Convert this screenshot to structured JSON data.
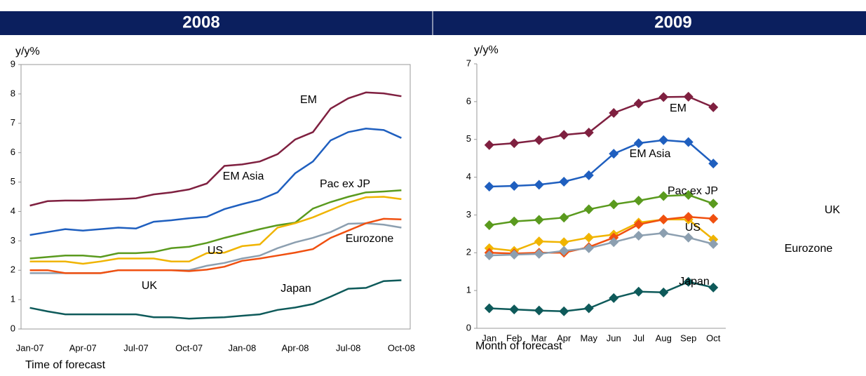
{
  "chart_data": [
    {
      "type": "line",
      "title": "2008",
      "ylabel": "y/y%",
      "xlabel": "Time of forecast",
      "categories": [
        "Jan-07",
        null,
        null,
        "Apr-07",
        null,
        null,
        "Jul-07",
        null,
        null,
        "Oct-07",
        null,
        null,
        "Jan-08",
        null,
        null,
        "Apr-08",
        null,
        null,
        "Jul-08",
        null,
        null,
        "Oct-08"
      ],
      "ylim": [
        0,
        9
      ],
      "yticks": [
        0,
        1,
        2,
        3,
        4,
        5,
        6,
        7,
        8,
        9
      ],
      "series": [
        {
          "name": "EM",
          "color": "#7f2040",
          "values": [
            4.2,
            4.35,
            4.37,
            4.37,
            4.4,
            4.42,
            4.45,
            4.58,
            4.65,
            4.75,
            4.95,
            5.55,
            5.6,
            5.7,
            5.95,
            6.45,
            6.7,
            7.5,
            7.85,
            8.05,
            8.02,
            7.92
          ]
        },
        {
          "name": "EM Asia",
          "color": "#1f5fbf",
          "values": [
            3.2,
            3.3,
            3.4,
            3.35,
            3.4,
            3.45,
            3.42,
            3.65,
            3.7,
            3.77,
            3.82,
            4.08,
            4.25,
            4.4,
            4.65,
            5.3,
            5.7,
            6.42,
            6.7,
            6.82,
            6.77,
            6.5
          ]
        },
        {
          "name": "Pac ex JP",
          "color": "#5a9a1e",
          "values": [
            2.4,
            2.45,
            2.5,
            2.5,
            2.45,
            2.58,
            2.58,
            2.62,
            2.75,
            2.8,
            2.93,
            3.1,
            3.25,
            3.4,
            3.53,
            3.62,
            4.1,
            4.32,
            4.5,
            4.65,
            4.68,
            4.72
          ]
        },
        {
          "name": "US",
          "color": "#f0b400",
          "values": [
            2.3,
            2.3,
            2.3,
            2.22,
            2.3,
            2.4,
            2.4,
            2.4,
            2.3,
            2.3,
            2.58,
            2.6,
            2.82,
            2.88,
            3.45,
            3.6,
            3.8,
            4.05,
            4.3,
            4.48,
            4.5,
            4.42
          ]
        },
        {
          "name": "Eurozone",
          "color": "#8c9fb0",
          "values": [
            1.9,
            1.9,
            1.9,
            1.9,
            1.9,
            2.0,
            2.0,
            2.0,
            2.0,
            2.0,
            2.15,
            2.25,
            2.4,
            2.5,
            2.75,
            2.95,
            3.1,
            3.3,
            3.58,
            3.6,
            3.55,
            3.45
          ]
        },
        {
          "name": "UK",
          "color": "#f05010",
          "values": [
            2.0,
            2.0,
            1.9,
            1.9,
            1.9,
            2.0,
            2.0,
            2.0,
            2.0,
            1.97,
            2.02,
            2.12,
            2.32,
            2.4,
            2.5,
            2.6,
            2.72,
            3.1,
            3.35,
            3.6,
            3.75,
            3.73
          ]
        },
        {
          "name": "Japan",
          "color": "#0e5a5a",
          "values": [
            0.72,
            0.6,
            0.5,
            0.5,
            0.5,
            0.5,
            0.5,
            0.4,
            0.4,
            0.35,
            0.38,
            0.4,
            0.45,
            0.5,
            0.65,
            0.73,
            0.85,
            1.1,
            1.37,
            1.4,
            1.63,
            1.66
          ]
        }
      ]
    },
    {
      "type": "line",
      "title": "2009",
      "ylabel": "y/y%",
      "xlabel": "Month of forecast",
      "marker": "diamond",
      "categories": [
        "Jan",
        "Feb",
        "Mar",
        "Apr",
        "May",
        "Jun",
        "Jul",
        "Aug",
        "Sep",
        "Oct"
      ],
      "ylim": [
        0,
        7
      ],
      "yticks": [
        0,
        1,
        2,
        3,
        4,
        5,
        6,
        7
      ],
      "series": [
        {
          "name": "EM",
          "color": "#7f2040",
          "values": [
            4.85,
            4.9,
            4.98,
            5.12,
            5.18,
            5.7,
            5.95,
            6.12,
            6.13,
            5.85
          ]
        },
        {
          "name": "EM Asia",
          "color": "#1f5fbf",
          "values": [
            3.75,
            3.77,
            3.8,
            3.88,
            4.05,
            4.62,
            4.9,
            4.98,
            4.93,
            4.36
          ]
        },
        {
          "name": "Pac ex JP",
          "color": "#5a9a1e",
          "values": [
            2.73,
            2.83,
            2.87,
            2.93,
            3.15,
            3.28,
            3.38,
            3.5,
            3.53,
            3.3
          ]
        },
        {
          "name": "US",
          "color": "#f0b400",
          "values": [
            2.12,
            2.05,
            2.3,
            2.28,
            2.4,
            2.48,
            2.8,
            2.88,
            2.88,
            2.35
          ]
        },
        {
          "name": "UK",
          "color": "#f05010",
          "values": [
            2.0,
            1.98,
            2.0,
            2.0,
            2.15,
            2.4,
            2.75,
            2.88,
            2.95,
            2.9
          ]
        },
        {
          "name": "Eurozone",
          "color": "#8c9fb0",
          "values": [
            1.93,
            1.95,
            1.97,
            2.05,
            2.12,
            2.28,
            2.45,
            2.52,
            2.4,
            2.23
          ]
        },
        {
          "name": "Japan",
          "color": "#0e5a5a",
          "values": [
            0.53,
            0.5,
            0.47,
            0.45,
            0.53,
            0.8,
            0.97,
            0.95,
            1.23,
            1.08
          ]
        }
      ]
    }
  ]
}
